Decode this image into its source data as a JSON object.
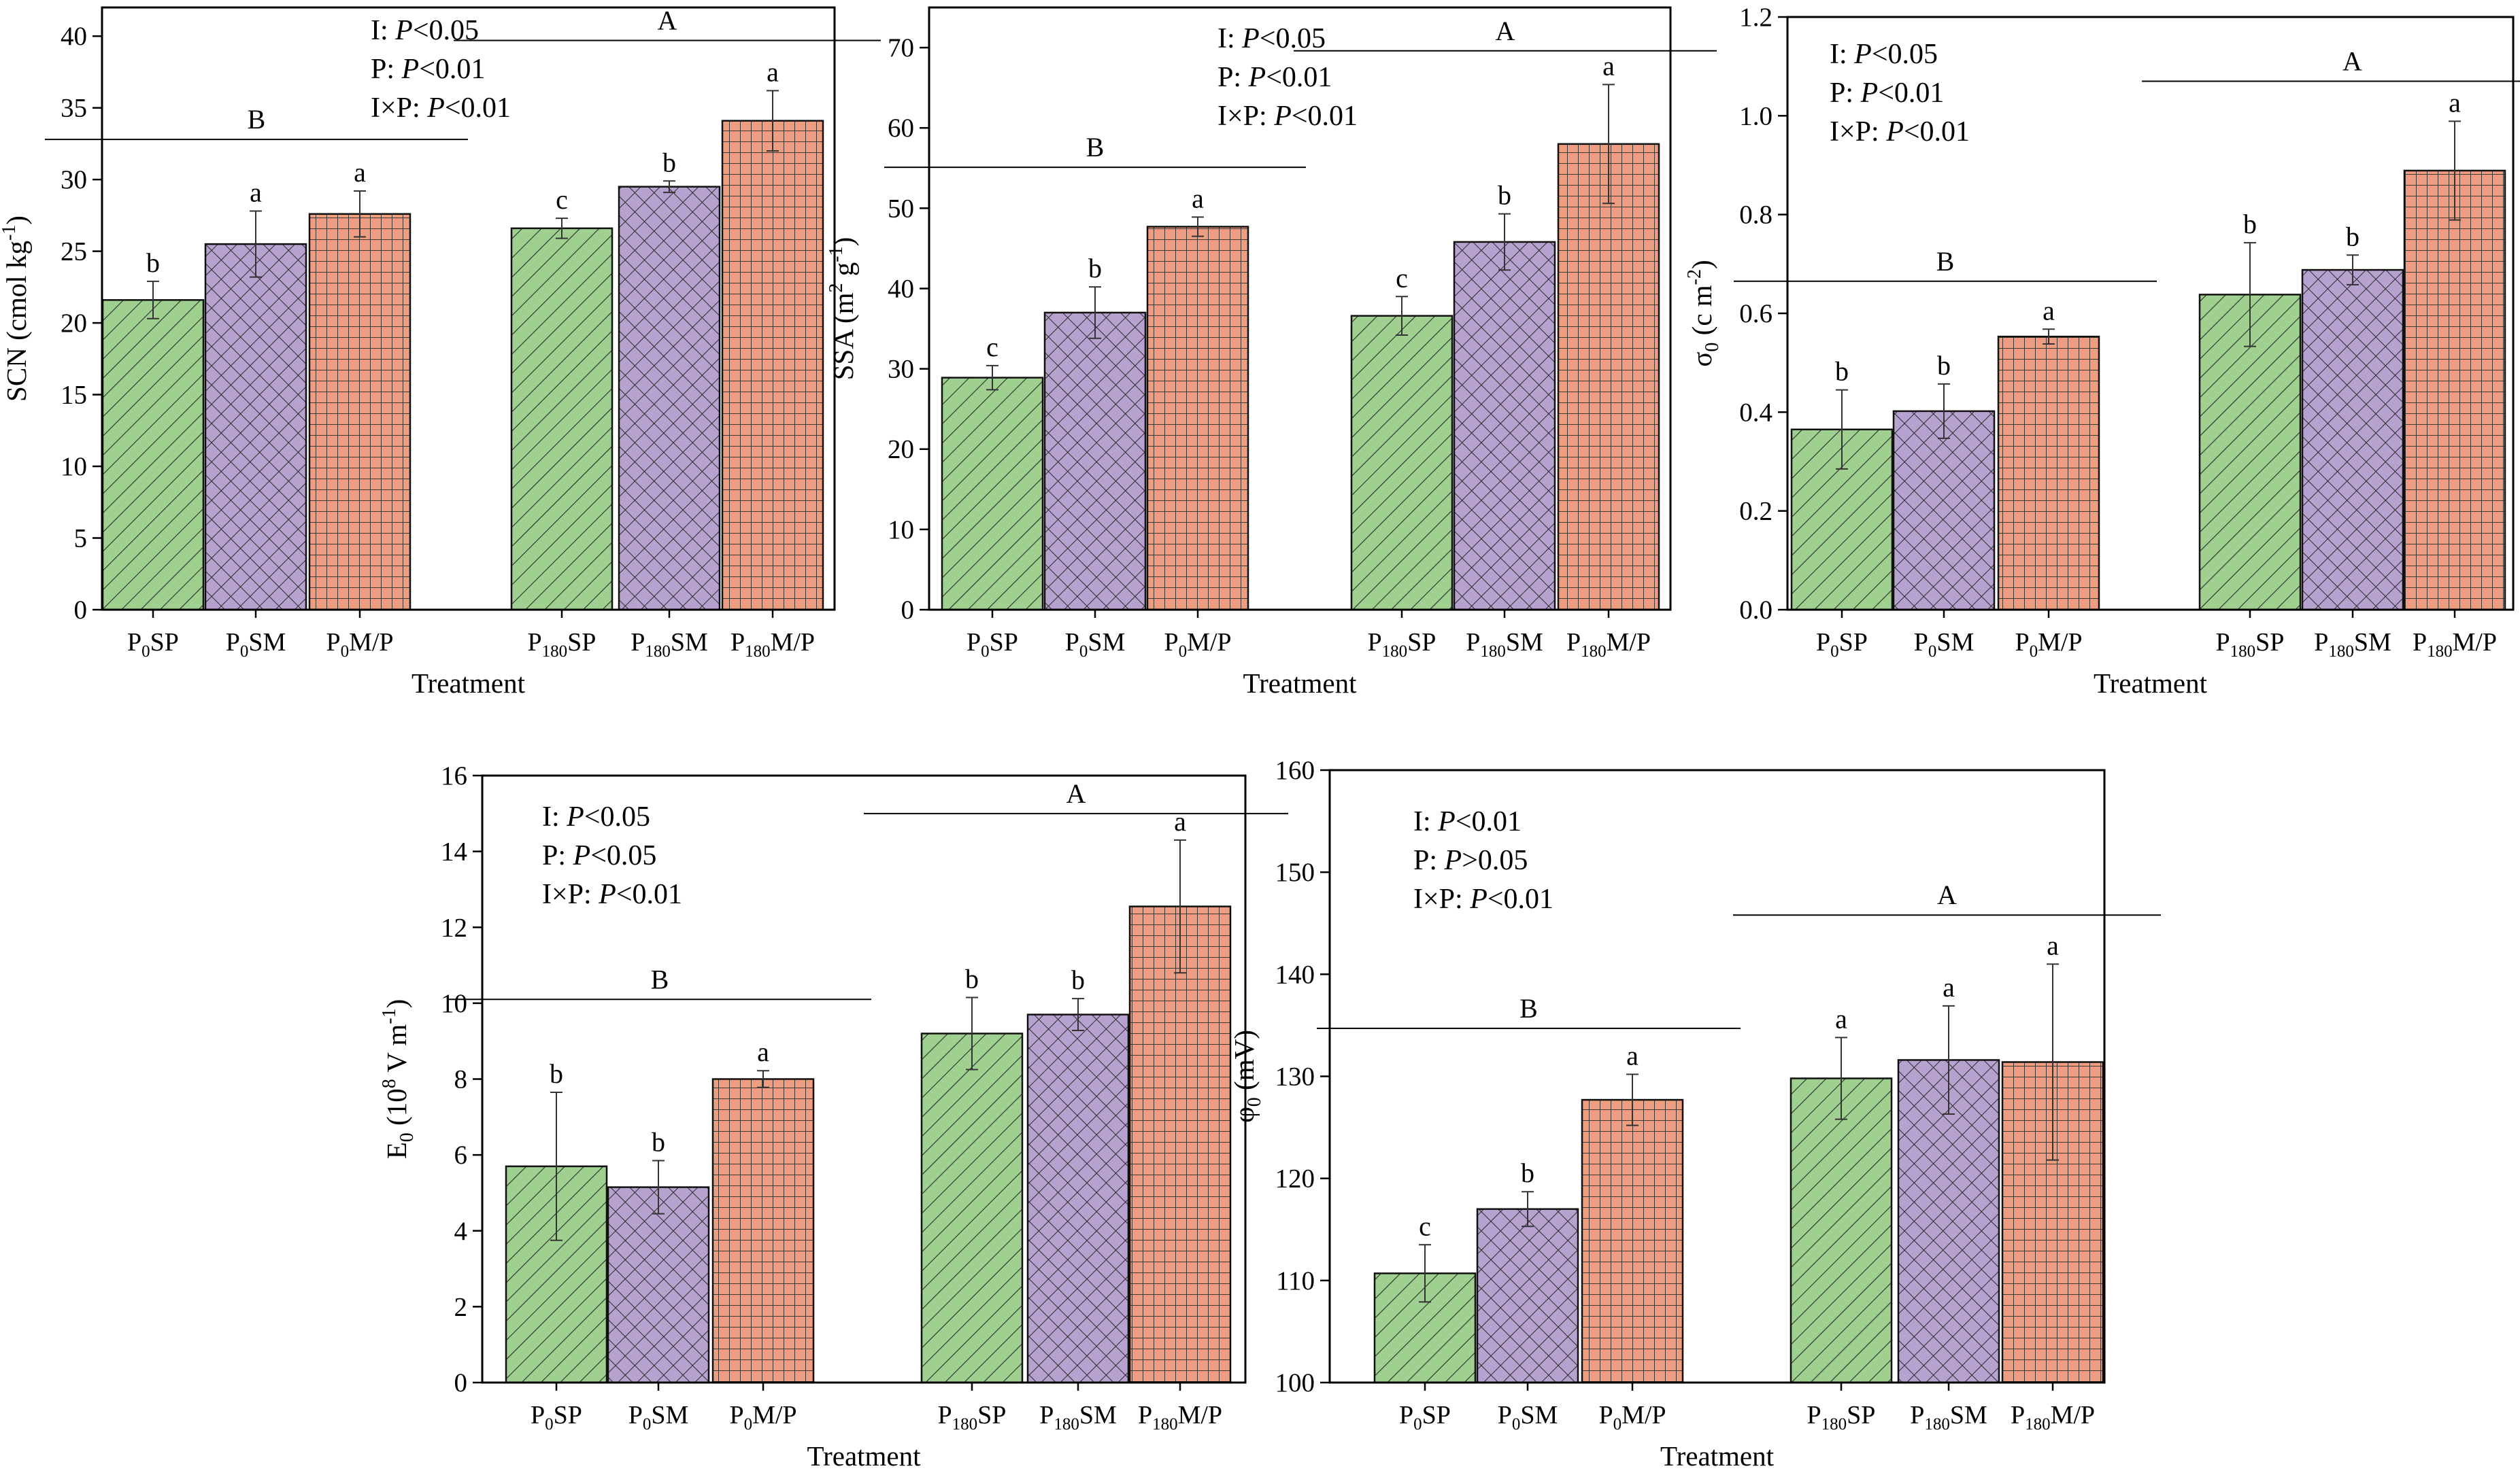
{
  "colors": {
    "SP": "#9fd08f",
    "SM": "#b6a1cf",
    "MP": "#ee9e80",
    "axis": "#000000"
  },
  "charts": [
    {
      "type": "bar",
      "ylabel": {
        "main": "SCN (cmol kg",
        "sup": "-1",
        "end": ")"
      },
      "xlabel": "Treatment",
      "ylim": [
        0,
        42
      ],
      "yticks": [
        0,
        5,
        10,
        15,
        20,
        25,
        30,
        35,
        40
      ],
      "yticklabels": [
        "0",
        "5",
        "10",
        "15",
        "20",
        "25",
        "30",
        "35",
        "40"
      ],
      "categories": [
        {
          "main": "P",
          "sub": "0",
          "rest": "SP"
        },
        {
          "main": "P",
          "sub": "0",
          "rest": "SM"
        },
        {
          "main": "P",
          "sub": "0",
          "rest": "M/P"
        },
        {
          "main": "P",
          "sub": "180",
          "rest": "SP"
        },
        {
          "main": "P",
          "sub": "180",
          "rest": "SM"
        },
        {
          "main": "P",
          "sub": "180",
          "rest": "M/P"
        }
      ],
      "values": [
        21.6,
        25.5,
        27.6,
        26.6,
        29.5,
        34.1
      ],
      "errors": [
        1.3,
        2.3,
        1.6,
        0.7,
        0.4,
        2.1
      ],
      "letters": [
        "b",
        "a",
        "a",
        "c",
        "b",
        "a"
      ],
      "groups": [
        {
          "label": "B",
          "y": 32.8,
          "from": 0,
          "to": 2
        },
        {
          "label": "A",
          "y": 39.7,
          "from": 3,
          "to": 5
        }
      ],
      "stats": [
        {
          "prefix": "I: ",
          "p": "P",
          "rel": "<0.05"
        },
        {
          "prefix": "P: ",
          "p": "P",
          "rel": "<0.01"
        },
        {
          "prefix": "I×P: ",
          "p": "P",
          "rel": "<0.01"
        }
      ]
    },
    {
      "type": "bar",
      "ylabel": {
        "main": "SSA (m",
        "sup": "2",
        "mid": " g",
        "sup2": "-1",
        "end": ")"
      },
      "xlabel": "Treatment",
      "ylim": [
        0,
        75
      ],
      "yticks": [
        0,
        10,
        20,
        30,
        40,
        50,
        60,
        70
      ],
      "yticklabels": [
        "0",
        "10",
        "20",
        "30",
        "40",
        "50",
        "60",
        "70"
      ],
      "categories": [
        {
          "main": "P",
          "sub": "0",
          "rest": "SP"
        },
        {
          "main": "P",
          "sub": "0",
          "rest": "SM"
        },
        {
          "main": "P",
          "sub": "0",
          "rest": "M/P"
        },
        {
          "main": "P",
          "sub": "180",
          "rest": "SP"
        },
        {
          "main": "P",
          "sub": "180",
          "rest": "SM"
        },
        {
          "main": "P",
          "sub": "180",
          "rest": "M/P"
        }
      ],
      "values": [
        28.9,
        37.0,
        47.7,
        36.6,
        45.8,
        58.0
      ],
      "errors": [
        1.5,
        3.2,
        1.2,
        2.4,
        3.5,
        7.4
      ],
      "letters": [
        "c",
        "b",
        "a",
        "c",
        "b",
        "a"
      ],
      "groups": [
        {
          "label": "B",
          "y": 55.1,
          "from": 0,
          "to": 2
        },
        {
          "label": "A",
          "y": 69.6,
          "from": 3,
          "to": 5
        }
      ],
      "stats": [
        {
          "prefix": "I: ",
          "p": "P",
          "rel": "<0.05"
        },
        {
          "prefix": "P: ",
          "p": "P",
          "rel": "<0.01"
        },
        {
          "prefix": "I×P: ",
          "p": "P",
          "rel": "<0.01"
        }
      ]
    },
    {
      "type": "bar",
      "ylabel": {
        "main": "σ",
        "sub": "0",
        "mid": " (c m",
        "sup": "-2",
        "end": ")"
      },
      "xlabel": "Treatment",
      "ylim": [
        0,
        1.2
      ],
      "yticks": [
        0.0,
        0.2,
        0.4,
        0.6,
        0.8,
        1.0,
        1.2
      ],
      "yticklabels": [
        "0.0",
        "0.2",
        "0.4",
        "0.6",
        "0.8",
        "1.0",
        "1.2"
      ],
      "categories": [
        {
          "main": "P",
          "sub": "0",
          "rest": "SP"
        },
        {
          "main": "P",
          "sub": "0",
          "rest": "SM"
        },
        {
          "main": "P",
          "sub": "0",
          "rest": "M/P"
        },
        {
          "main": "P",
          "sub": "180",
          "rest": "SP"
        },
        {
          "main": "P",
          "sub": "180",
          "rest": "SM"
        },
        {
          "main": "P",
          "sub": "180",
          "rest": "M/P"
        }
      ],
      "values": [
        0.365,
        0.402,
        0.553,
        0.638,
        0.688,
        0.889
      ],
      "errors": [
        0.08,
        0.055,
        0.015,
        0.105,
        0.03,
        0.1
      ],
      "letters": [
        "b",
        "b",
        "a",
        "b",
        "b",
        "a"
      ],
      "groups": [
        {
          "label": "B",
          "y": 0.665,
          "from": 0,
          "to": 2
        },
        {
          "label": "A",
          "y": 1.07,
          "from": 3,
          "to": 5
        }
      ],
      "stats": [
        {
          "prefix": "I: ",
          "p": "P",
          "rel": "<0.05"
        },
        {
          "prefix": "P: ",
          "p": "P",
          "rel": "<0.01"
        },
        {
          "prefix": "I×P: ",
          "p": "P",
          "rel": "<0.01"
        }
      ]
    },
    {
      "type": "bar",
      "ylabel": {
        "main": "E",
        "sub": "0",
        "mid": " (10",
        "sup": "8",
        "mid2": " V m",
        "sup2": "-1",
        "end": ")"
      },
      "xlabel": "Treatment",
      "ylim": [
        0,
        16
      ],
      "yticks": [
        0,
        2,
        4,
        6,
        8,
        10,
        12,
        14,
        16
      ],
      "yticklabels": [
        "0",
        "2",
        "4",
        "6",
        "8",
        "10",
        "12",
        "14",
        "16"
      ],
      "categories": [
        {
          "main": "P",
          "sub": "0",
          "rest": "SP"
        },
        {
          "main": "P",
          "sub": "0",
          "rest": "SM"
        },
        {
          "main": "P",
          "sub": "0",
          "rest": "M/P"
        },
        {
          "main": "P",
          "sub": "180",
          "rest": "SP"
        },
        {
          "main": "P",
          "sub": "180",
          "rest": "SM"
        },
        {
          "main": "P",
          "sub": "180",
          "rest": "M/P"
        }
      ],
      "values": [
        5.7,
        5.15,
        8.0,
        9.2,
        9.7,
        12.55
      ],
      "errors": [
        1.95,
        0.7,
        0.22,
        0.95,
        0.42,
        1.75
      ],
      "letters": [
        "b",
        "b",
        "a",
        "b",
        "b",
        "a"
      ],
      "groups": [
        {
          "label": "B",
          "y": 10.1,
          "from": 0,
          "to": 2
        },
        {
          "label": "A",
          "y": 15.0,
          "from": 3,
          "to": 5
        }
      ],
      "stats": [
        {
          "prefix": "I: ",
          "p": "P",
          "rel": "<0.05"
        },
        {
          "prefix": "P: ",
          "p": "P",
          "rel": "<0.05"
        },
        {
          "prefix": "I×P: ",
          "p": "P",
          "rel": "<0.01"
        }
      ]
    },
    {
      "type": "bar",
      "ylabel": {
        "main": "φ",
        "sub": "0",
        "mid": " (mV)"
      },
      "xlabel": "Treatment",
      "ylim": [
        100,
        160
      ],
      "yticks": [
        100,
        110,
        120,
        130,
        140,
        150,
        160
      ],
      "yticklabels": [
        "100",
        "110",
        "120",
        "130",
        "140",
        "150",
        "160"
      ],
      "categories": [
        {
          "main": "P",
          "sub": "0",
          "rest": "SP"
        },
        {
          "main": "P",
          "sub": "0",
          "rest": "SM"
        },
        {
          "main": "P",
          "sub": "0",
          "rest": "M/P"
        },
        {
          "main": "P",
          "sub": "180",
          "rest": "SP"
        },
        {
          "main": "P",
          "sub": "180",
          "rest": "SM"
        },
        {
          "main": "P",
          "sub": "180",
          "rest": "M/P"
        }
      ],
      "values": [
        110.7,
        117.0,
        127.7,
        129.8,
        131.6,
        131.4
      ],
      "errors": [
        2.8,
        1.7,
        2.5,
        4.0,
        5.3,
        9.6
      ],
      "letters": [
        "c",
        "b",
        "a",
        "a",
        "a",
        "a"
      ],
      "groups": [
        {
          "label": "B",
          "y": 134.7,
          "from": 0,
          "to": 2
        },
        {
          "label": "A",
          "y": 145.8,
          "from": 3,
          "to": 5
        }
      ],
      "stats": [
        {
          "prefix": "I: ",
          "p": "P",
          "rel": "<0.01"
        },
        {
          "prefix": "P: ",
          "p": "P",
          "rel": ">0.05"
        },
        {
          "prefix": "I×P: ",
          "p": "P",
          "rel": "<0.01"
        }
      ]
    }
  ]
}
